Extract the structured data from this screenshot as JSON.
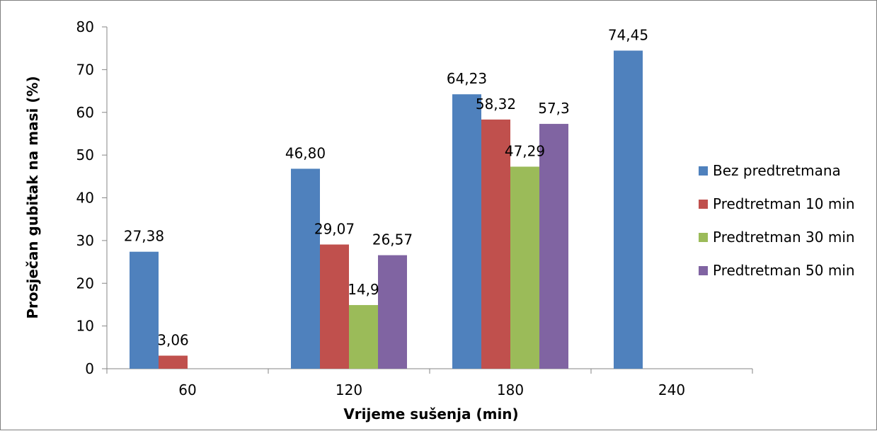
{
  "chart_data": {
    "type": "bar",
    "title": "",
    "xlabel": "Vrijeme sušenja (min)",
    "ylabel": "Prosječan gubitak na masi (%)",
    "categories": [
      "60",
      "120",
      "180",
      "240"
    ],
    "ylim": [
      0,
      80
    ],
    "yticks": [
      "0",
      "10",
      "20",
      "30",
      "40",
      "50",
      "60",
      "70",
      "80"
    ],
    "grid": false,
    "legend_position": "right",
    "series": [
      {
        "name": "Bez predtretmana",
        "color": "#4F81BD",
        "values": [
          27.38,
          46.8,
          64.23,
          74.45
        ],
        "labels": [
          "27,38",
          "46,80",
          "64,23",
          "74,45"
        ]
      },
      {
        "name": "Predtretman 10 min",
        "color": "#C0504D",
        "values": [
          3.06,
          29.07,
          58.32,
          null
        ],
        "labels": [
          "3,06",
          "29,07",
          "58,32",
          ""
        ]
      },
      {
        "name": "Predtretman 30 min",
        "color": "#9BBB59",
        "values": [
          null,
          14.9,
          47.29,
          null
        ],
        "labels": [
          "",
          "14,9",
          "47,29",
          ""
        ]
      },
      {
        "name": "Predtretman 50 min",
        "color": "#8064A2",
        "values": [
          null,
          26.57,
          57.3,
          null
        ],
        "labels": [
          "",
          "26,57",
          "57,3",
          ""
        ]
      }
    ]
  }
}
